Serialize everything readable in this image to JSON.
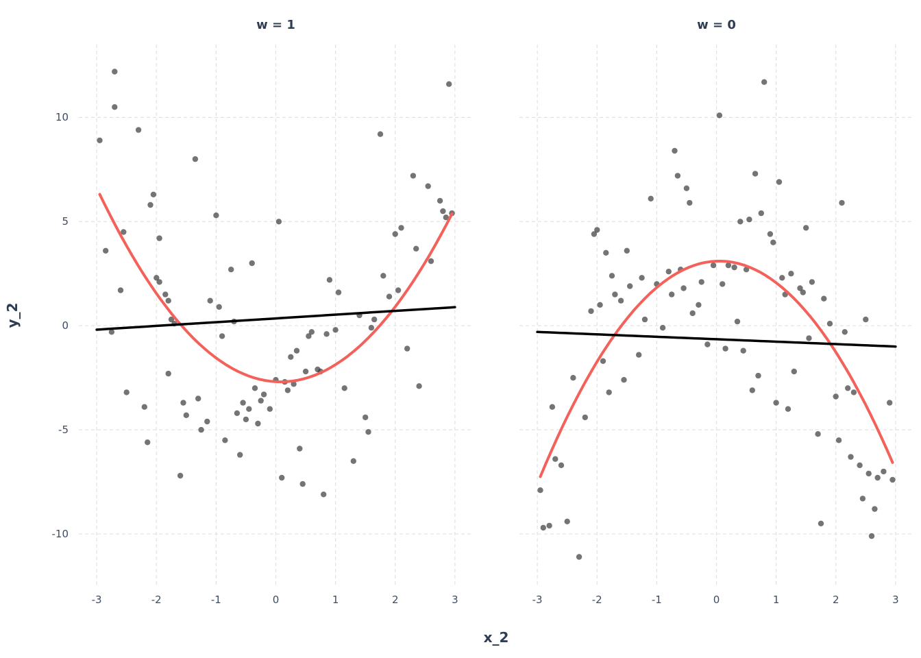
{
  "figure": {
    "x_axis_label": "x_2",
    "y_axis_label": "y_2"
  },
  "colors": {
    "background": "#ffffff",
    "grid": "#e2e2e2",
    "point": "#3f3f3f",
    "text": "#2f3d52",
    "tick_text": "#3d4c63",
    "quadratic_fit": "#f4615a",
    "linear_fit": "#000000"
  },
  "chart_data": {
    "type": "scatter",
    "title": "",
    "xlabel": "x_2",
    "ylabel": "y_2",
    "xlim": [
      -3.3,
      3.3
    ],
    "ylim": [
      -12.5,
      13.5
    ],
    "x_ticks": [
      -3,
      -2,
      -1,
      0,
      1,
      2,
      3
    ],
    "y_ticks": [
      -10,
      -5,
      0,
      5,
      10
    ],
    "grid": "dashed-major",
    "facets": [
      {
        "title": "w = 1",
        "points": [
          [
            -2.95,
            8.9
          ],
          [
            -2.7,
            12.2
          ],
          [
            -2.7,
            10.5
          ],
          [
            -2.85,
            3.6
          ],
          [
            -2.6,
            1.7
          ],
          [
            -2.75,
            -0.3
          ],
          [
            -2.55,
            4.5
          ],
          [
            -2.5,
            -3.2
          ],
          [
            -2.3,
            9.4
          ],
          [
            -2.05,
            6.3
          ],
          [
            -2.1,
            5.8
          ],
          [
            -2.2,
            -3.9
          ],
          [
            -2.15,
            -5.6
          ],
          [
            -1.95,
            4.2
          ],
          [
            -2.0,
            2.3
          ],
          [
            -1.95,
            2.1
          ],
          [
            -1.85,
            1.5
          ],
          [
            -1.8,
            1.2
          ],
          [
            -1.75,
            0.3
          ],
          [
            -1.7,
            0.1
          ],
          [
            -1.8,
            -2.3
          ],
          [
            -1.55,
            -3.7
          ],
          [
            -1.5,
            -4.3
          ],
          [
            -1.6,
            -7.2
          ],
          [
            -1.35,
            8.0
          ],
          [
            -1.3,
            -3.5
          ],
          [
            -1.25,
            -5.0
          ],
          [
            -1.15,
            -4.6
          ],
          [
            -1.1,
            1.2
          ],
          [
            -1.0,
            5.3
          ],
          [
            -0.95,
            0.9
          ],
          [
            -0.9,
            -0.5
          ],
          [
            -0.85,
            -5.5
          ],
          [
            -0.75,
            2.7
          ],
          [
            -0.7,
            0.2
          ],
          [
            -0.65,
            -4.2
          ],
          [
            -0.6,
            -6.2
          ],
          [
            -0.55,
            -3.7
          ],
          [
            -0.5,
            -4.5
          ],
          [
            -0.45,
            -4.0
          ],
          [
            -0.4,
            3.0
          ],
          [
            -0.35,
            -3.0
          ],
          [
            -0.3,
            -4.7
          ],
          [
            -0.25,
            -3.6
          ],
          [
            -0.2,
            -3.3
          ],
          [
            -0.1,
            -4.0
          ],
          [
            0.0,
            -2.6
          ],
          [
            0.05,
            5.0
          ],
          [
            0.1,
            -7.3
          ],
          [
            0.15,
            -2.7
          ],
          [
            0.2,
            -3.1
          ],
          [
            0.25,
            -1.5
          ],
          [
            0.3,
            -2.8
          ],
          [
            0.35,
            -1.2
          ],
          [
            0.4,
            -5.9
          ],
          [
            0.45,
            -7.6
          ],
          [
            0.5,
            -2.2
          ],
          [
            0.55,
            -0.5
          ],
          [
            0.6,
            -0.3
          ],
          [
            0.7,
            -2.1
          ],
          [
            0.75,
            -2.2
          ],
          [
            0.8,
            -8.1
          ],
          [
            0.85,
            -0.4
          ],
          [
            0.9,
            2.2
          ],
          [
            1.0,
            -0.2
          ],
          [
            1.05,
            1.6
          ],
          [
            1.15,
            -3.0
          ],
          [
            1.3,
            -6.5
          ],
          [
            1.4,
            0.5
          ],
          [
            1.5,
            -4.4
          ],
          [
            1.55,
            -5.1
          ],
          [
            1.6,
            -0.1
          ],
          [
            1.65,
            0.3
          ],
          [
            1.75,
            9.2
          ],
          [
            1.8,
            2.4
          ],
          [
            1.9,
            1.4
          ],
          [
            2.0,
            4.4
          ],
          [
            2.05,
            1.7
          ],
          [
            2.1,
            4.7
          ],
          [
            2.2,
            -1.1
          ],
          [
            2.3,
            7.2
          ],
          [
            2.35,
            3.7
          ],
          [
            2.4,
            -2.9
          ],
          [
            2.55,
            6.7
          ],
          [
            2.6,
            3.1
          ],
          [
            2.75,
            6.0
          ],
          [
            2.8,
            5.5
          ],
          [
            2.85,
            5.2
          ],
          [
            2.9,
            11.6
          ],
          [
            2.95,
            5.4
          ]
        ],
        "fits": [
          {
            "name": "quadratic-fit",
            "color": "#f4615a",
            "coeffs": [
              -2.69,
              -0.16,
              0.98
            ],
            "x_range": [
              -2.95,
              2.95
            ],
            "width": 4
          },
          {
            "name": "linear-fit",
            "color": "#000000",
            "coeffs": [
              0.35,
              0.18,
              0
            ],
            "x_range": [
              -3.0,
              3.0
            ],
            "width": 3.5
          }
        ]
      },
      {
        "title": "w = 0",
        "points": [
          [
            -2.95,
            -7.9
          ],
          [
            -2.9,
            -9.7
          ],
          [
            -2.8,
            -9.6
          ],
          [
            -2.75,
            -3.9
          ],
          [
            -2.7,
            -6.4
          ],
          [
            -2.6,
            -6.7
          ],
          [
            -2.5,
            -9.4
          ],
          [
            -2.4,
            -2.5
          ],
          [
            -2.3,
            -11.1
          ],
          [
            -2.2,
            -4.4
          ],
          [
            -2.1,
            0.7
          ],
          [
            -2.05,
            4.4
          ],
          [
            -2.0,
            4.6
          ],
          [
            -1.95,
            1.0
          ],
          [
            -1.9,
            -1.7
          ],
          [
            -1.85,
            3.5
          ],
          [
            -1.8,
            -3.2
          ],
          [
            -1.75,
            2.4
          ],
          [
            -1.7,
            1.5
          ],
          [
            -1.6,
            1.2
          ],
          [
            -1.55,
            -2.6
          ],
          [
            -1.5,
            3.6
          ],
          [
            -1.45,
            1.9
          ],
          [
            -1.3,
            -1.4
          ],
          [
            -1.25,
            2.3
          ],
          [
            -1.2,
            0.3
          ],
          [
            -1.1,
            6.1
          ],
          [
            -1.0,
            2.0
          ],
          [
            -0.9,
            -0.1
          ],
          [
            -0.8,
            2.6
          ],
          [
            -0.75,
            1.5
          ],
          [
            -0.7,
            8.4
          ],
          [
            -0.65,
            7.2
          ],
          [
            -0.6,
            2.7
          ],
          [
            -0.55,
            1.8
          ],
          [
            -0.5,
            6.6
          ],
          [
            -0.45,
            5.9
          ],
          [
            -0.4,
            0.6
          ],
          [
            -0.3,
            1.0
          ],
          [
            -0.25,
            2.1
          ],
          [
            -0.15,
            -0.9
          ],
          [
            -0.05,
            2.9
          ],
          [
            0.05,
            10.1
          ],
          [
            0.1,
            2.0
          ],
          [
            0.15,
            -1.1
          ],
          [
            0.2,
            2.9
          ],
          [
            0.3,
            2.8
          ],
          [
            0.35,
            0.2
          ],
          [
            0.4,
            5.0
          ],
          [
            0.45,
            -1.2
          ],
          [
            0.5,
            2.7
          ],
          [
            0.55,
            5.1
          ],
          [
            0.6,
            -3.1
          ],
          [
            0.65,
            7.3
          ],
          [
            0.7,
            -2.4
          ],
          [
            0.75,
            5.4
          ],
          [
            0.8,
            11.7
          ],
          [
            0.9,
            4.4
          ],
          [
            0.95,
            4.0
          ],
          [
            1.0,
            -3.7
          ],
          [
            1.05,
            6.9
          ],
          [
            1.1,
            2.3
          ],
          [
            1.15,
            1.5
          ],
          [
            1.2,
            -4.0
          ],
          [
            1.25,
            2.5
          ],
          [
            1.3,
            -2.2
          ],
          [
            1.4,
            1.8
          ],
          [
            1.45,
            1.6
          ],
          [
            1.5,
            4.7
          ],
          [
            1.55,
            -0.6
          ],
          [
            1.6,
            2.1
          ],
          [
            1.7,
            -5.2
          ],
          [
            1.75,
            -9.5
          ],
          [
            1.8,
            1.3
          ],
          [
            1.9,
            0.1
          ],
          [
            2.0,
            -3.4
          ],
          [
            2.05,
            -5.5
          ],
          [
            2.1,
            5.9
          ],
          [
            2.15,
            -0.3
          ],
          [
            2.2,
            -3.0
          ],
          [
            2.25,
            -6.3
          ],
          [
            2.3,
            -3.2
          ],
          [
            2.4,
            -6.7
          ],
          [
            2.45,
            -8.3
          ],
          [
            2.5,
            0.3
          ],
          [
            2.55,
            -7.1
          ],
          [
            2.6,
            -10.1
          ],
          [
            2.65,
            -8.8
          ],
          [
            2.7,
            -7.3
          ],
          [
            2.8,
            -7.0
          ],
          [
            2.9,
            -3.7
          ],
          [
            2.95,
            -7.4
          ]
        ],
        "fits": [
          {
            "name": "quadratic-fit",
            "color": "#f4615a",
            "coeffs": [
              3.1,
              0.115,
              -1.15
            ],
            "x_range": [
              -2.95,
              2.95
            ],
            "width": 4
          },
          {
            "name": "linear-fit",
            "color": "#000000",
            "coeffs": [
              -0.65,
              -0.117,
              0
            ],
            "x_range": [
              -3.0,
              3.0
            ],
            "width": 3.5
          }
        ]
      }
    ]
  }
}
